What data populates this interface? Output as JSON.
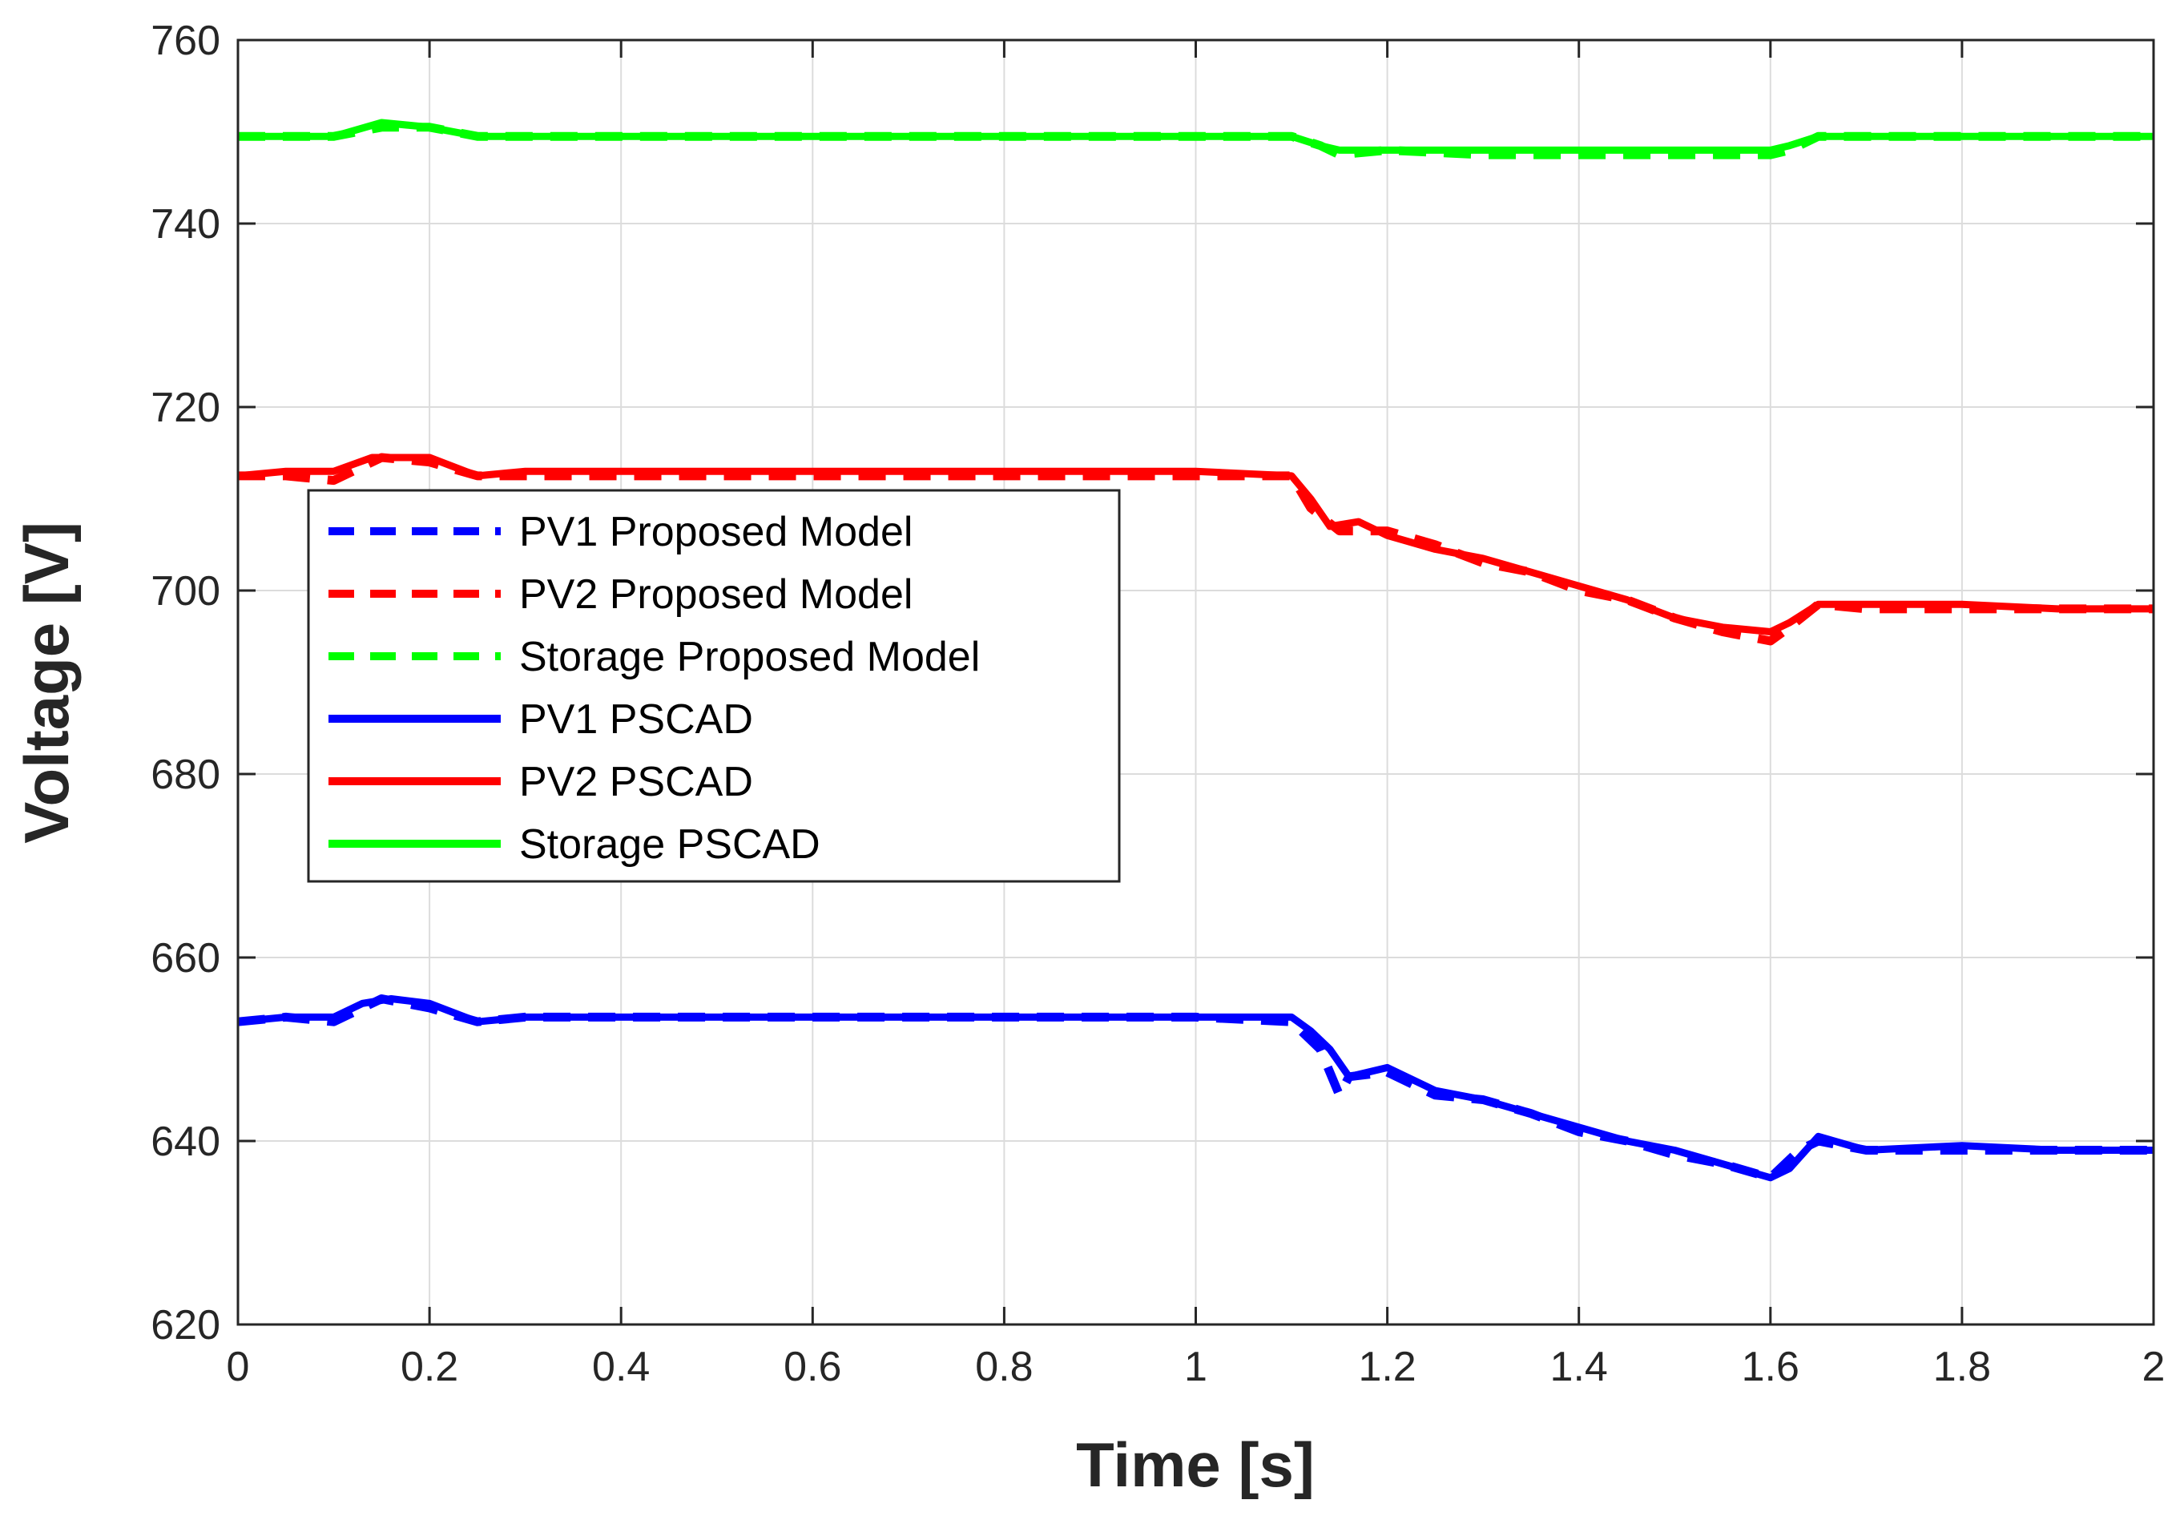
{
  "chart_data": {
    "type": "line",
    "title": "",
    "xlabel": "Time [s]",
    "ylabel": "Voltage [V]",
    "xlim": [
      0,
      2
    ],
    "ylim": [
      620,
      760
    ],
    "xticks": [
      0,
      0.2,
      0.4,
      0.6,
      0.8,
      1,
      1.2,
      1.4,
      1.6,
      1.8,
      2
    ],
    "xtick_labels": [
      "0",
      "0.2",
      "0.4",
      "0.6",
      "0.8",
      "1",
      "1.2",
      "1.4",
      "1.6",
      "1.8",
      "2"
    ],
    "yticks": [
      620,
      640,
      660,
      680,
      700,
      720,
      740,
      760
    ],
    "ytick_labels": [
      "620",
      "640",
      "660",
      "680",
      "700",
      "720",
      "740",
      "760"
    ],
    "grid": true,
    "legend_position": "center-left",
    "series": [
      {
        "name": "PV1 Proposed Model",
        "color": "#0000ff",
        "style": "dashed",
        "x": [
          0,
          0.05,
          0.1,
          0.15,
          0.2,
          0.25,
          0.3,
          0.4,
          0.6,
          0.8,
          1.0,
          1.1,
          1.13,
          1.15,
          1.16,
          1.2,
          1.25,
          1.3,
          1.35,
          1.4,
          1.45,
          1.5,
          1.55,
          1.6,
          1.63,
          1.65,
          1.7,
          1.8,
          1.9,
          2.0
        ],
        "y": [
          653,
          653.5,
          653,
          655.5,
          654.5,
          653,
          653.5,
          653.5,
          653.5,
          653.5,
          653.5,
          653,
          650,
          645,
          647,
          647.5,
          645,
          644.5,
          643,
          641,
          640,
          638.5,
          637.5,
          636,
          639,
          640,
          639,
          639,
          639,
          639
        ]
      },
      {
        "name": "PV2 Proposed Model",
        "color": "#ff0000",
        "style": "dashed",
        "x": [
          0,
          0.05,
          0.1,
          0.15,
          0.2,
          0.25,
          0.3,
          0.4,
          0.6,
          0.8,
          1.0,
          1.1,
          1.12,
          1.15,
          1.2,
          1.25,
          1.3,
          1.35,
          1.4,
          1.45,
          1.5,
          1.55,
          1.6,
          1.62,
          1.65,
          1.7,
          1.8,
          1.9,
          2.0
        ],
        "y": [
          712.5,
          712.5,
          712,
          714.5,
          714,
          712.5,
          712.5,
          712.5,
          712.5,
          712.5,
          712.5,
          712.5,
          709,
          706.5,
          706.5,
          705,
          703,
          702,
          700,
          699,
          697,
          695.5,
          694.5,
          696,
          698.5,
          698,
          698,
          698,
          698
        ]
      },
      {
        "name": "Storage Proposed Model",
        "color": "#00ff00",
        "style": "dashed",
        "x": [
          0,
          0.05,
          0.1,
          0.15,
          0.2,
          0.25,
          0.3,
          0.5,
          0.8,
          1.0,
          1.1,
          1.13,
          1.15,
          1.2,
          1.3,
          1.4,
          1.5,
          1.6,
          1.62,
          1.65,
          1.7,
          1.8,
          1.9,
          2.0
        ],
        "y": [
          749.5,
          749.5,
          749.5,
          750.5,
          750.5,
          749.5,
          749.5,
          749.5,
          749.5,
          749.5,
          749.5,
          748.5,
          747.5,
          748,
          747.5,
          747.5,
          747.5,
          747.5,
          748,
          749.5,
          749.5,
          749.5,
          749.5,
          749.5
        ]
      },
      {
        "name": "PV1 PSCAD",
        "color": "#0000ff",
        "style": "solid",
        "x": [
          0,
          0.05,
          0.1,
          0.13,
          0.16,
          0.2,
          0.25,
          0.3,
          0.4,
          0.6,
          0.8,
          1.0,
          1.1,
          1.12,
          1.14,
          1.16,
          1.2,
          1.25,
          1.3,
          1.35,
          1.4,
          1.45,
          1.5,
          1.55,
          1.6,
          1.62,
          1.65,
          1.7,
          1.8,
          1.9,
          2.0
        ],
        "y": [
          653,
          653.5,
          653.5,
          655,
          655.5,
          655,
          653,
          653.5,
          653.5,
          653.5,
          653.5,
          653.5,
          653.5,
          652,
          650,
          647,
          648,
          645.5,
          644.5,
          643,
          641.5,
          640,
          639,
          637.5,
          636,
          637,
          640.5,
          639,
          639.5,
          639,
          639
        ]
      },
      {
        "name": "PV2 PSCAD",
        "color": "#ff0000",
        "style": "solid",
        "x": [
          0,
          0.05,
          0.1,
          0.14,
          0.2,
          0.25,
          0.3,
          0.4,
          0.6,
          0.8,
          1.0,
          1.1,
          1.12,
          1.14,
          1.17,
          1.2,
          1.25,
          1.3,
          1.35,
          1.4,
          1.45,
          1.5,
          1.55,
          1.6,
          1.62,
          1.65,
          1.7,
          1.8,
          1.9,
          2.0
        ],
        "y": [
          712.5,
          713,
          713,
          714.5,
          714.5,
          712.5,
          713,
          713,
          713,
          713,
          713,
          712.5,
          710,
          707,
          707.5,
          706,
          704.5,
          703.5,
          702,
          700.5,
          699,
          697,
          696,
          695.5,
          696.5,
          698.5,
          698.5,
          698.5,
          698,
          698
        ]
      },
      {
        "name": "Storage PSCAD",
        "color": "#00ff00",
        "style": "solid",
        "x": [
          0,
          0.05,
          0.1,
          0.15,
          0.2,
          0.25,
          0.3,
          0.5,
          0.8,
          1.0,
          1.1,
          1.13,
          1.15,
          1.2,
          1.3,
          1.4,
          1.5,
          1.6,
          1.62,
          1.65,
          1.7,
          1.8,
          1.9,
          2.0
        ],
        "y": [
          749.5,
          749.5,
          749.5,
          751,
          750.5,
          749.5,
          749.5,
          749.5,
          749.5,
          749.5,
          749.5,
          748.5,
          748,
          748,
          748,
          748,
          748,
          748,
          748.5,
          749.5,
          749.5,
          749.5,
          749.5,
          749.5
        ]
      }
    ]
  }
}
